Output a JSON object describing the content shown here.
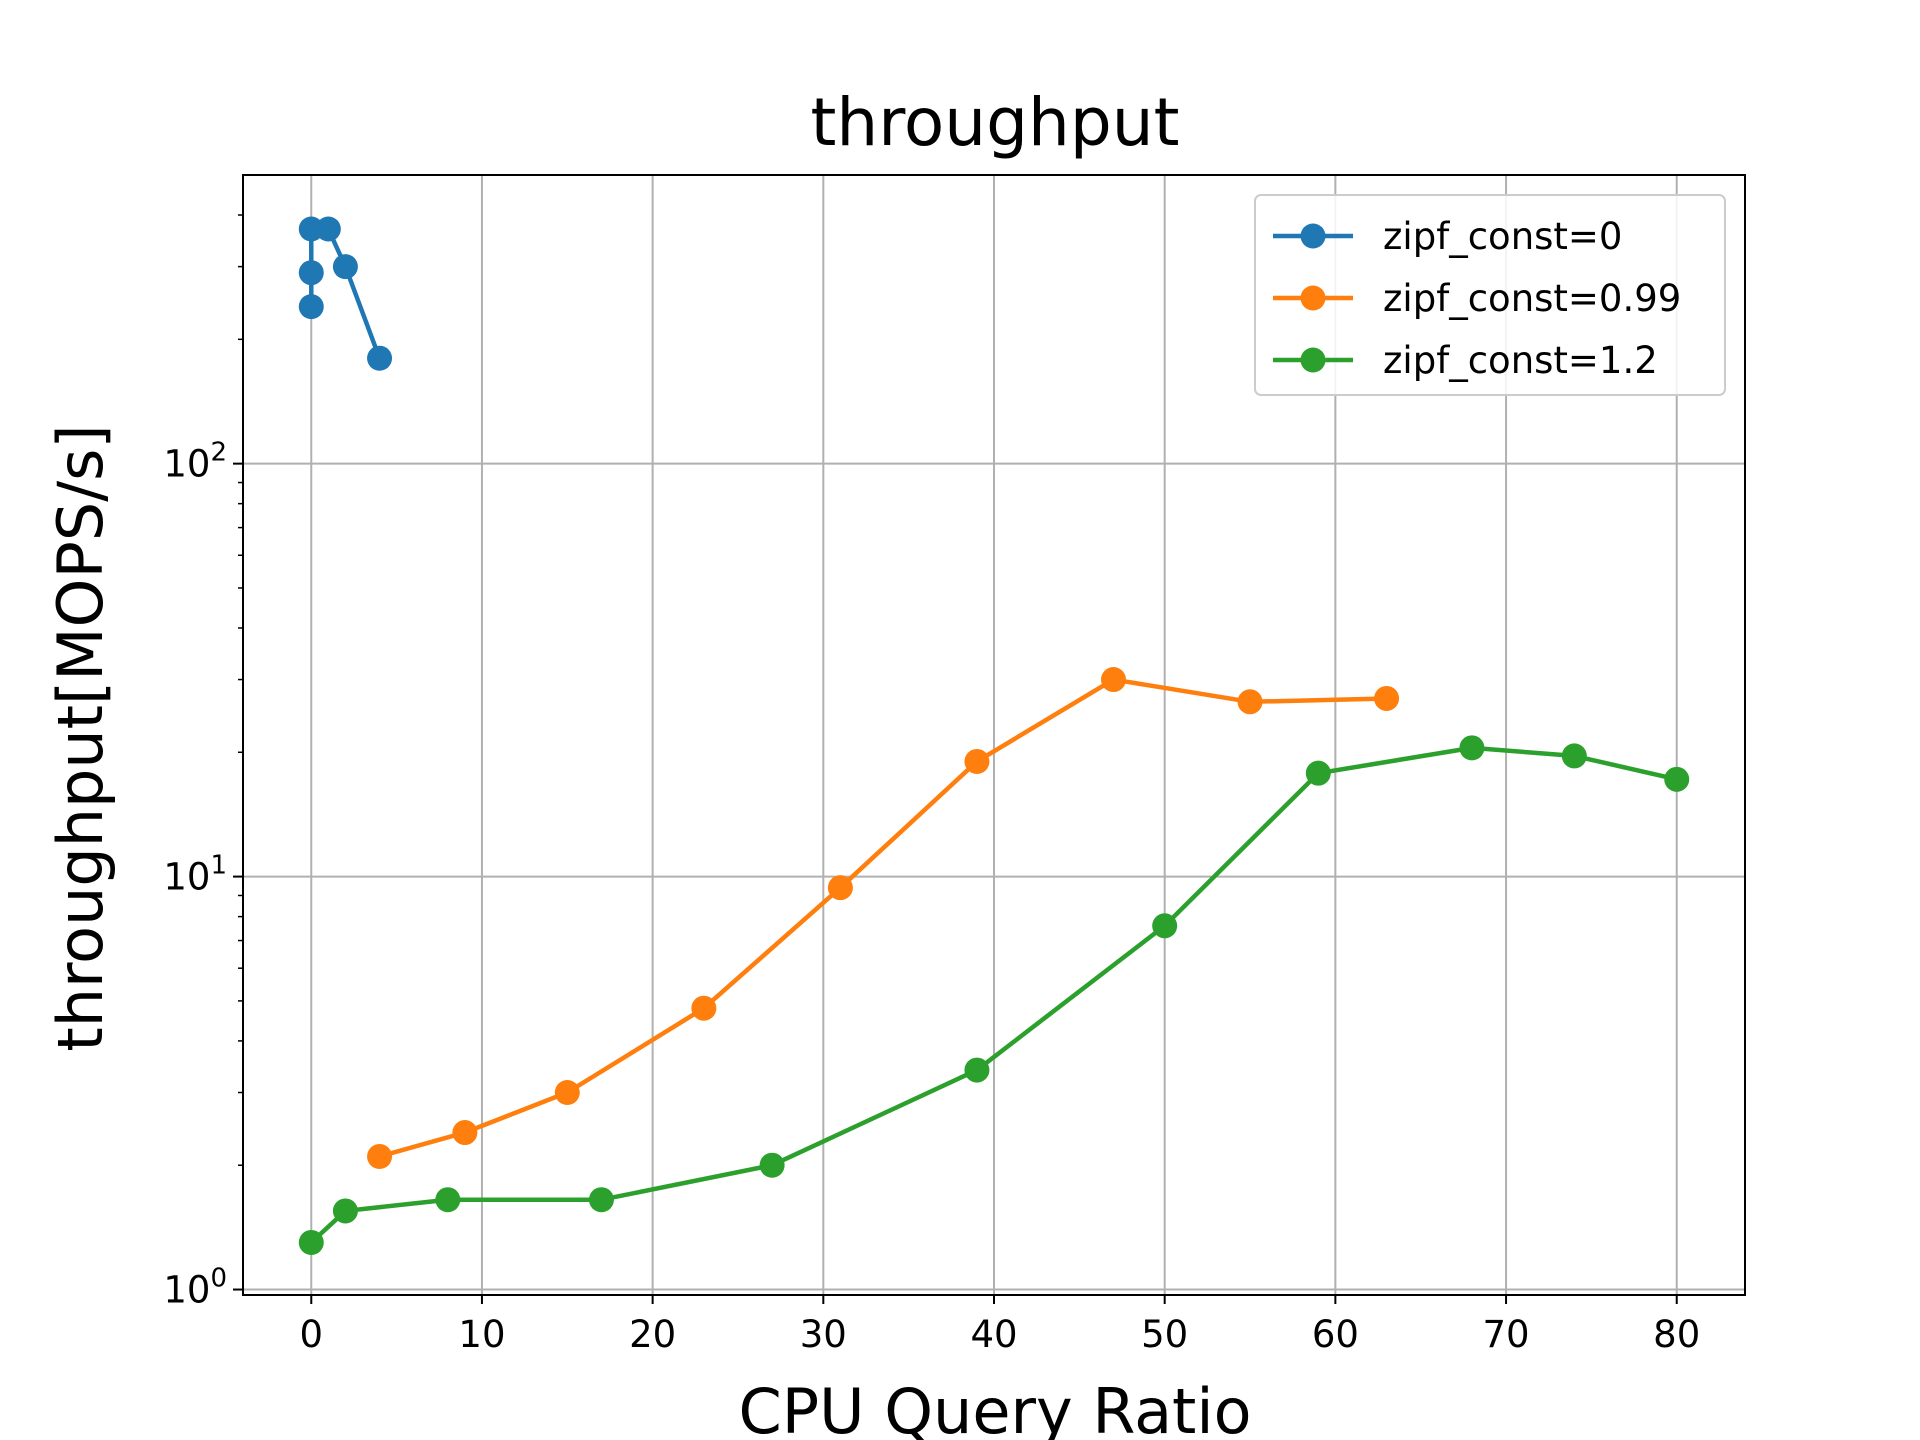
{
  "chart_data": {
    "type": "line",
    "title": "throughput",
    "xlabel": "CPU Query Ratio",
    "ylabel": "throughput[MOPS/s]",
    "yscale": "log",
    "xlim": [
      -4,
      84
    ],
    "ylim": [
      0.97,
      500
    ],
    "xticks": [
      0,
      10,
      20,
      30,
      40,
      50,
      60,
      70,
      80
    ],
    "yticks": [
      {
        "value": 1,
        "base": "10",
        "exp": "0"
      },
      {
        "value": 10,
        "base": "10",
        "exp": "1"
      },
      {
        "value": 100,
        "base": "10",
        "exp": "2"
      }
    ],
    "grid": true,
    "legend_position": "top-right",
    "series": [
      {
        "name": "zipf_const=0",
        "color": "#1f77b4",
        "x": [
          0,
          0,
          0,
          1,
          2,
          4
        ],
        "y": [
          240,
          290,
          370,
          370,
          300,
          180
        ]
      },
      {
        "name": "zipf_const=0.99",
        "color": "#ff7f0e",
        "x": [
          4,
          9,
          15,
          23,
          31,
          39,
          47,
          55,
          63
        ],
        "y": [
          2.1,
          2.4,
          3.0,
          4.8,
          9.4,
          19,
          30,
          26.5,
          27
        ]
      },
      {
        "name": "zipf_const=1.2",
        "color": "#2ca02c",
        "x": [
          0,
          2,
          8,
          17,
          27,
          39,
          50,
          59,
          68,
          74,
          80
        ],
        "y": [
          1.3,
          1.55,
          1.65,
          1.65,
          2.0,
          3.4,
          7.6,
          17.8,
          20.5,
          19.6,
          17.2
        ]
      }
    ]
  }
}
